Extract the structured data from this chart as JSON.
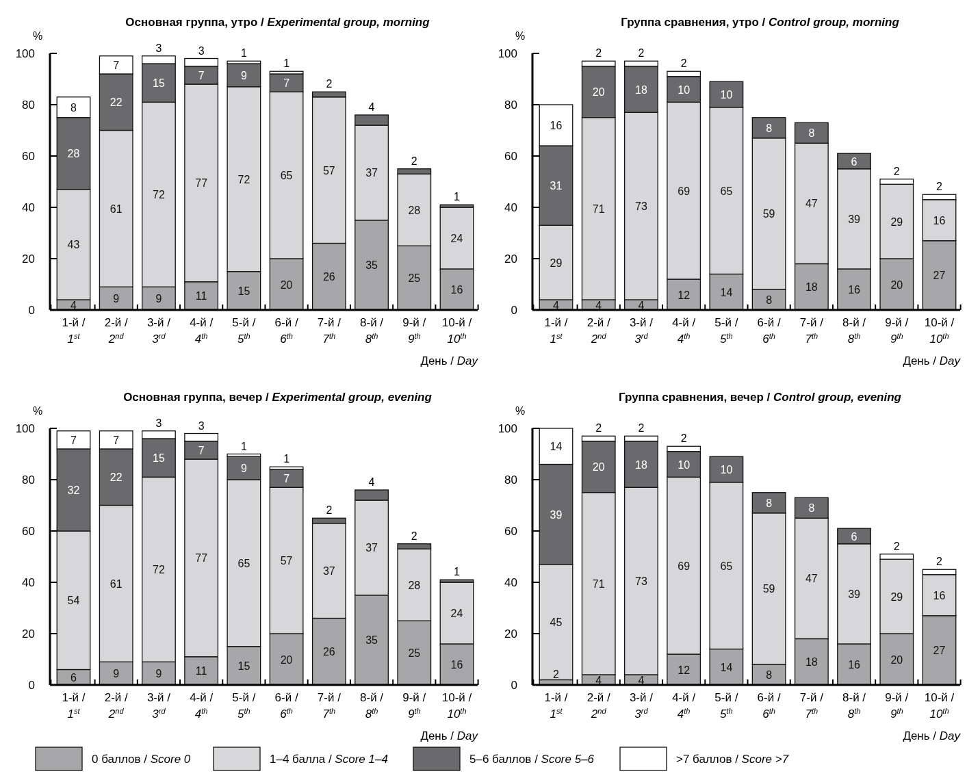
{
  "chart_data": [
    {
      "type": "bar",
      "stacked": true,
      "title": "Основная группа, утро / Experimental group, morning",
      "xlabel": "День / Day",
      "ylabel": "%",
      "categories": [
        "1-й / 1$^{st}$",
        "2-й / 2$^{nd}$",
        "3-й / 3$^{rd}$",
        "4-й / 4$^{th}$",
        "5-й / 5$^{th}$",
        "6-й / 6$^{th}$",
        "7-й / 7$^{th}$",
        "8-й / 8$^{th}$",
        "9-й / 9$^{th}$",
        "10-й / 10$^{th}$"
      ],
      "ylim": [
        0,
        100
      ],
      "yticks": [
        0,
        20,
        40,
        60,
        80,
        100
      ],
      "data_labels": true,
      "legend": "bottom",
      "series": [
        {
          "name": "0 баллов / Score 0",
          "color": "#a7a7a9",
          "values": [
            4,
            9,
            9,
            11,
            15,
            20,
            26,
            35,
            25,
            16
          ]
        },
        {
          "name": "1–4 балла / Score 1–4",
          "color": "#d7d7d9",
          "values": [
            43,
            61,
            72,
            77,
            72,
            65,
            57,
            37,
            28,
            24
          ]
        },
        {
          "name": "5–6 баллов / Score 5–6",
          "color": "#6a6a6c",
          "values": [
            28,
            22,
            15,
            7,
            9,
            7,
            2,
            4,
            2,
            1
          ]
        },
        {
          "name": ">7 баллов / Score >7",
          "color": "#ffffff",
          "values": [
            8,
            7,
            3,
            3,
            1,
            1,
            null,
            null,
            null,
            null
          ]
        }
      ]
    },
    {
      "type": "bar",
      "stacked": true,
      "title": "Группа сравнения, утро / Control group, morning",
      "xlabel": "День / Day",
      "ylabel": "%",
      "categories": [
        "1-й / 1$^{st}$",
        "2-й / 2$^{nd}$",
        "3-й / 3$^{rd}$",
        "4-й / 4$^{th}$",
        "5-й / 5$^{th}$",
        "6-й / 6$^{th}$",
        "7-й / 7$^{th}$",
        "8-й / 8$^{th}$",
        "9-й / 9$^{th}$",
        "10-й / 10$^{th}$"
      ],
      "ylim": [
        0,
        100
      ],
      "yticks": [
        0,
        20,
        40,
        60,
        80,
        100
      ],
      "data_labels": true,
      "series": [
        {
          "color": "#a7a7a9",
          "values": [
            4,
            4,
            4,
            12,
            14,
            8,
            18,
            16,
            20,
            27
          ]
        },
        {
          "color": "#d7d7d9",
          "values": [
            29,
            71,
            73,
            69,
            65,
            59,
            47,
            39,
            29,
            16
          ]
        },
        {
          "color": "#6a6a6c",
          "values": [
            31,
            20,
            18,
            10,
            10,
            8,
            8,
            6,
            null,
            null
          ]
        },
        {
          "color": "#ffffff",
          "values": [
            16,
            2,
            2,
            2,
            null,
            null,
            null,
            null,
            2,
            2
          ]
        }
      ]
    },
    {
      "type": "bar",
      "stacked": true,
      "title": "Основная группа, вечер / Experimental group, evening",
      "xlabel": "День / Day",
      "ylabel": "%",
      "categories": [
        "1-й / 1$^{st}$",
        "2-й / 2$^{nd}$",
        "3-й / 3$^{rd}$",
        "4-й / 4$^{th}$",
        "5-й / 5$^{th}$",
        "6-й / 6$^{th}$",
        "7-й / 7$^{th}$",
        "8-й / 8$^{th}$",
        "9-й / 9$^{th}$",
        "10-й / 10$^{th}$"
      ],
      "ylim": [
        0,
        100
      ],
      "yticks": [
        0,
        20,
        40,
        60,
        80,
        100
      ],
      "data_labels": true,
      "series": [
        {
          "color": "#a7a7a9",
          "values": [
            6,
            9,
            9,
            11,
            15,
            20,
            26,
            35,
            25,
            16
          ]
        },
        {
          "color": "#d7d7d9",
          "values": [
            54,
            61,
            72,
            77,
            65,
            57,
            37,
            37,
            28,
            24
          ]
        },
        {
          "color": "#6a6a6c",
          "values": [
            32,
            22,
            15,
            7,
            9,
            7,
            2,
            4,
            2,
            1
          ]
        },
        {
          "color": "#ffffff",
          "values": [
            7,
            7,
            3,
            3,
            1,
            1,
            null,
            null,
            null,
            null
          ]
        }
      ]
    },
    {
      "type": "bar",
      "stacked": true,
      "title": "Группа сравнения, вечер / Control group, evening",
      "xlabel": "День / Day",
      "ylabel": "%",
      "categories": [
        "1-й / 1$^{st}$",
        "2-й / 2$^{nd}$",
        "3-й / 3$^{rd}$",
        "4-й / 4$^{th}$",
        "5-й / 5$^{th}$",
        "6-й / 6$^{th}$",
        "7-й / 7$^{th}$",
        "8-й / 8$^{th}$",
        "9-й / 9$^{th}$",
        "10-й / 10$^{th}$"
      ],
      "ylim": [
        0,
        100
      ],
      "yticks": [
        0,
        20,
        40,
        60,
        80,
        100
      ],
      "data_labels": true,
      "series": [
        {
          "color": "#a7a7a9",
          "values": [
            2,
            4,
            4,
            12,
            14,
            8,
            18,
            16,
            20,
            27
          ]
        },
        {
          "color": "#d7d7d9",
          "values": [
            45,
            71,
            73,
            69,
            65,
            59,
            47,
            39,
            29,
            16
          ]
        },
        {
          "color": "#6a6a6c",
          "values": [
            39,
            20,
            18,
            10,
            10,
            8,
            8,
            6,
            null,
            null
          ]
        },
        {
          "color": "#ffffff",
          "values": [
            14,
            2,
            2,
            2,
            null,
            null,
            null,
            null,
            2,
            2
          ]
        }
      ]
    }
  ]
}
